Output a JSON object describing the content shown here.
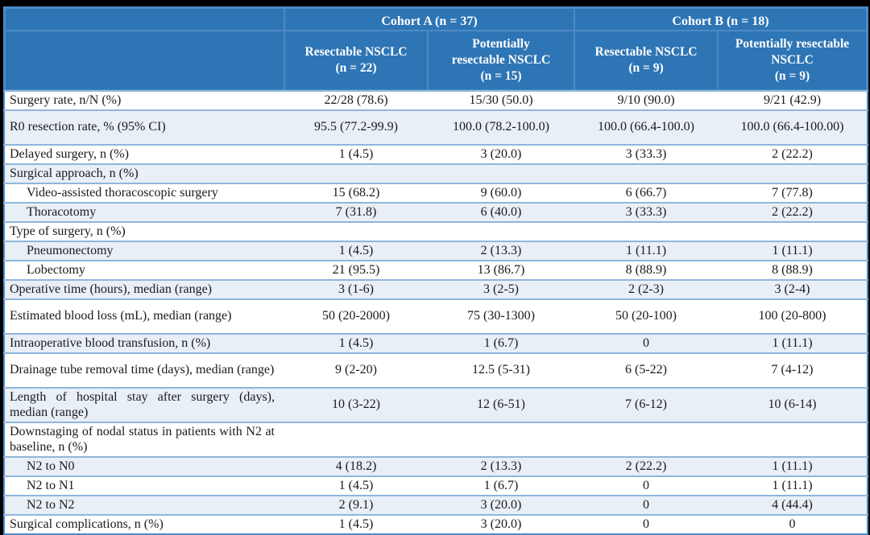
{
  "table": {
    "colors": {
      "header_bg": "#2E75B5",
      "header_text": "#FFFFFF",
      "row_alt_bg": "#E9EFF7",
      "row_border": "#8FB6DC",
      "outer_border": "#4D8AC4",
      "frame_bg": "#000000"
    },
    "header": {
      "groups": [
        {
          "label": "Cohort A (n = 37)"
        },
        {
          "label": "Cohort B (n = 18)"
        }
      ],
      "columns": [
        "Resectable NSCLC\n(n = 22)",
        "Potentially\nresectable NSCLC\n(n = 15)",
        "Resectable NSCLC\n(n = 9)",
        "Potentially resectable\nNSCLC\n(n = 9)"
      ]
    },
    "rows": [
      {
        "label": "Surgery rate, n/N (%)",
        "values": [
          "22/28 (78.6)",
          "15/30 (50.0)",
          "9/10 (90.0)",
          "9/21 (42.9)"
        ]
      },
      {
        "label": "R0 resection rate, % (95% CI)",
        "values": [
          "95.5 (77.2-99.9)",
          "100.0 (78.2-100.0)",
          "100.0 (66.4-100.0)",
          "100.0 (66.4-100.00)"
        ],
        "tall": true
      },
      {
        "label": "Delayed surgery, n (%)",
        "values": [
          "1 (4.5)",
          "3 (20.0)",
          "3 (33.3)",
          "2 (22.2)"
        ]
      },
      {
        "label": "Surgical approach, n (%)",
        "values": [
          "",
          "",
          "",
          ""
        ],
        "section": true
      },
      {
        "label": "Video-assisted thoracoscopic surgery",
        "values": [
          "15 (68.2)",
          "9 (60.0)",
          "6 (66.7)",
          "7 (77.8)"
        ],
        "indent": true
      },
      {
        "label": "Thoracotomy",
        "values": [
          "7 (31.8)",
          "6 (40.0)",
          "3 (33.3)",
          "2 (22.2)"
        ],
        "indent": true
      },
      {
        "label": "Type of surgery, n (%)",
        "values": [
          "",
          "",
          "",
          ""
        ],
        "section": true
      },
      {
        "label": "Pneumonectomy",
        "values": [
          "1 (4.5)",
          "2 (13.3)",
          "1 (11.1)",
          "1 (11.1)"
        ],
        "indent": true
      },
      {
        "label": "Lobectomy",
        "values": [
          "21 (95.5)",
          "13 (86.7)",
          "8 (88.9)",
          "8 (88.9)"
        ],
        "indent": true
      },
      {
        "label": "Operative time (hours), median (range)",
        "values": [
          "3 (1-6)",
          "3 (2-5)",
          "2 (2-3)",
          "3 (2-4)"
        ]
      },
      {
        "label": "Estimated blood loss (mL), median (range)",
        "values": [
          "50 (20-2000)",
          "75 (30-1300)",
          "50 (20-100)",
          "100 (20-800)"
        ],
        "tall": true
      },
      {
        "label": "Intraoperative blood transfusion, n (%)",
        "values": [
          "1 (4.5)",
          "1 (6.7)",
          "0",
          "1 (11.1)"
        ]
      },
      {
        "label": "Drainage tube removal time (days), median (range)",
        "values": [
          "9 (2-20)",
          "12.5 (5-31)",
          "6 (5-22)",
          "7 (4-12)"
        ],
        "tall": true
      },
      {
        "label": "Length of hospital stay after surgery (days), median (range)",
        "values": [
          "10 (3-22)",
          "12 (6-51)",
          "7 (6-12)",
          "10 (6-14)"
        ],
        "tall": true
      },
      {
        "label": "Downstaging of nodal status in patients with N2 at baseline, n (%)",
        "values": [
          "",
          "",
          "",
          ""
        ],
        "section": true,
        "tall": true
      },
      {
        "label": "N2 to N0",
        "values": [
          "4 (18.2)",
          "2 (13.3)",
          "2 (22.2)",
          "1 (11.1)"
        ],
        "indent": true
      },
      {
        "label": "N2 to N1",
        "values": [
          "1 (4.5)",
          "1 (6.7)",
          "0",
          "1 (11.1)"
        ],
        "indent": true
      },
      {
        "label": "N2 to N2",
        "values": [
          "2 (9.1)",
          "3 (20.0)",
          "0",
          "4 (44.4)"
        ],
        "indent": true
      },
      {
        "label": "Surgical complications, n (%)",
        "values": [
          "1 (4.5)",
          "3 (20.0)",
          "0",
          "0"
        ]
      }
    ]
  }
}
